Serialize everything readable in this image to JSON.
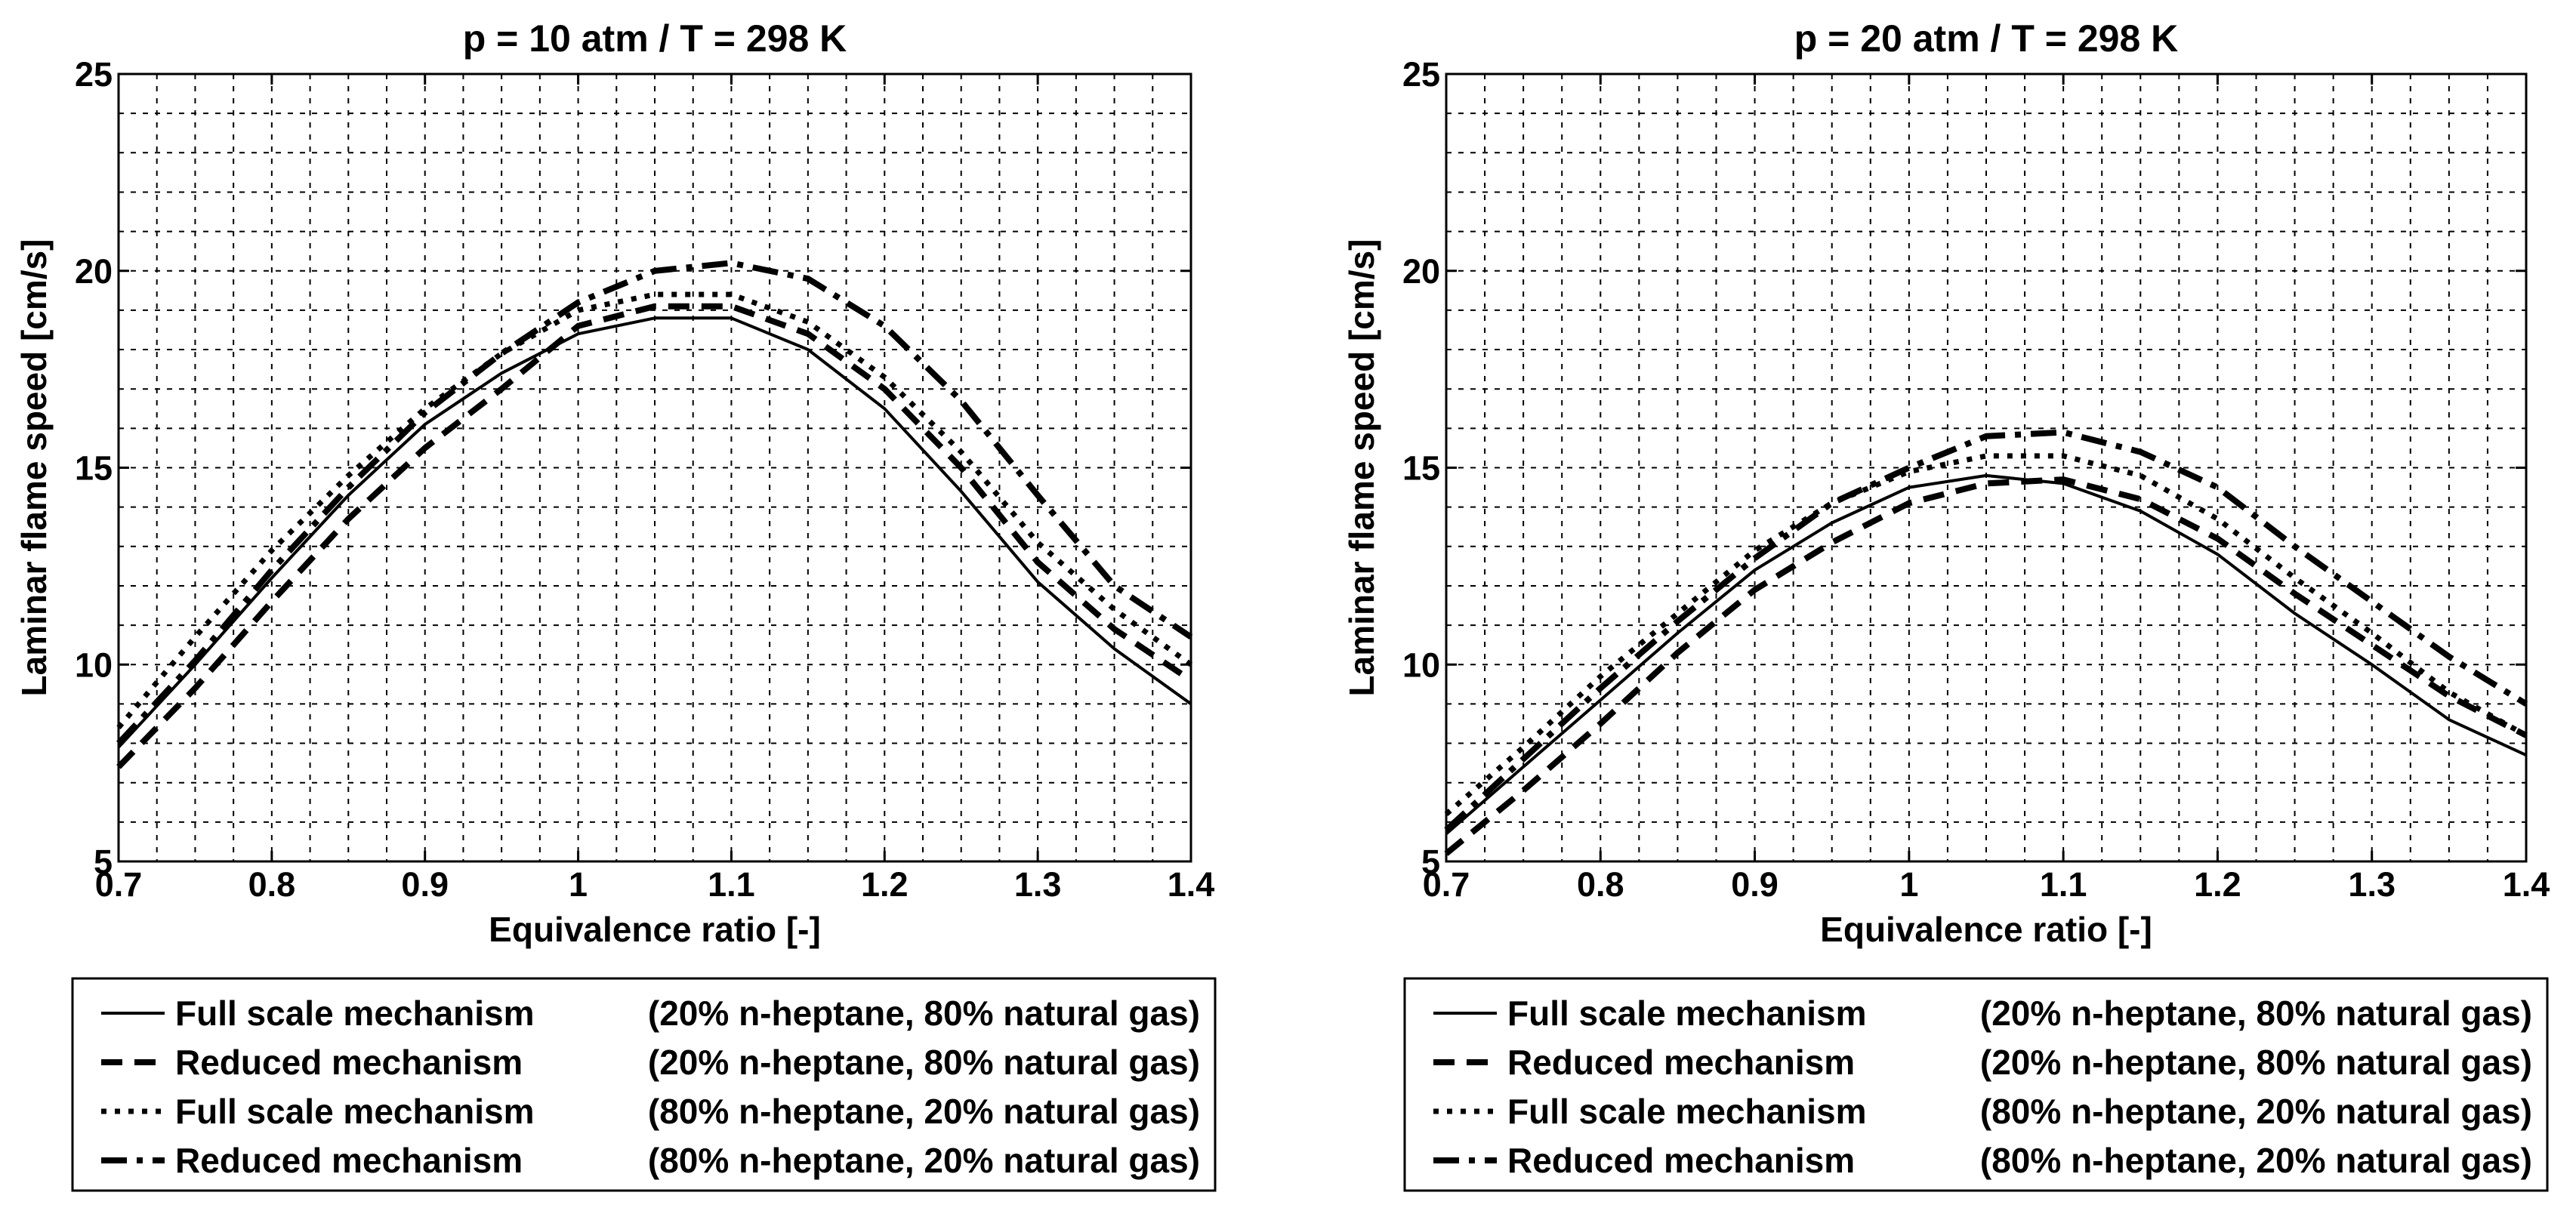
{
  "colors": {
    "line": "#000000",
    "grid": "#000000",
    "background": "#ffffff"
  },
  "chart_data": [
    {
      "type": "line",
      "title": "p = 10 atm / T = 298 K",
      "xlabel": "Equivalence ratio [-]",
      "ylabel": "Laminar flame speed [cm/s]",
      "xlim": [
        0.7,
        1.4
      ],
      "ylim": [
        5,
        25
      ],
      "xticks": [
        0.7,
        0.8,
        0.9,
        1,
        1.1,
        1.2,
        1.3,
        1.4
      ],
      "xtick_labels": [
        "0.7",
        "0.8",
        "0.9",
        "1",
        "1.1",
        "1.2",
        "1.3",
        "1.4"
      ],
      "yticks": [
        5,
        10,
        15,
        20,
        25
      ],
      "ytick_labels": [
        "5",
        "10",
        "15",
        "20",
        "25"
      ],
      "grid": true,
      "x": [
        0.7,
        0.75,
        0.8,
        0.85,
        0.9,
        0.95,
        1.0,
        1.05,
        1.1,
        1.15,
        1.2,
        1.25,
        1.3,
        1.35,
        1.4
      ],
      "series": [
        {
          "name": "Full scale mechanism",
          "composition": "(20% n-heptane, 80% natural gas)",
          "style": "solid",
          "values": [
            7.9,
            10.0,
            12.2,
            14.3,
            16.1,
            17.4,
            18.4,
            18.8,
            18.8,
            18.0,
            16.5,
            14.4,
            12.1,
            10.4,
            9.0
          ]
        },
        {
          "name": "Reduced mechanism",
          "composition": "(20% n-heptane, 80% natural gas)",
          "style": "dashed",
          "values": [
            7.4,
            9.4,
            11.6,
            13.7,
            15.5,
            17.0,
            18.6,
            19.1,
            19.1,
            18.4,
            17.0,
            15.0,
            12.6,
            10.9,
            9.6
          ]
        },
        {
          "name": "Full scale mechanism",
          "composition": "(80% n-heptane, 20% natural gas)",
          "style": "dotted",
          "values": [
            8.4,
            10.7,
            12.9,
            14.8,
            16.5,
            17.9,
            19.0,
            19.4,
            19.4,
            18.7,
            17.3,
            15.4,
            13.1,
            11.4,
            10.0
          ]
        },
        {
          "name": "Reduced mechanism",
          "composition": "(80% n-heptane, 20% natural gas)",
          "style": "dashdot",
          "values": [
            8.0,
            10.1,
            12.4,
            14.5,
            16.4,
            17.9,
            19.2,
            20.0,
            20.2,
            19.8,
            18.6,
            16.7,
            14.3,
            12.0,
            10.7
          ]
        }
      ],
      "legend": [
        {
          "label": "Full scale mechanism",
          "composition": "(20% n-heptane, 80% natural gas)",
          "style": "solid"
        },
        {
          "label": "Reduced mechanism",
          "composition": "(20% n-heptane, 80% natural gas)",
          "style": "dashed"
        },
        {
          "label": "Full scale mechanism",
          "composition": "(80% n-heptane, 20% natural gas)",
          "style": "dotted"
        },
        {
          "label": "Reduced mechanism",
          "composition": "(80% n-heptane, 20% natural gas)",
          "style": "dashdot"
        }
      ],
      "legend_position": "below"
    },
    {
      "type": "line",
      "title": "p = 20 atm / T = 298 K",
      "xlabel": "Equivalence ratio [-]",
      "ylabel": "Laminar flame speed [cm/s]",
      "xlim": [
        0.7,
        1.4
      ],
      "ylim": [
        5,
        25
      ],
      "xticks": [
        0.7,
        0.8,
        0.9,
        1,
        1.1,
        1.2,
        1.3,
        1.4
      ],
      "xtick_labels": [
        "0.7",
        "0.8",
        "0.9",
        "1",
        "1.1",
        "1.2",
        "1.3",
        "1.4"
      ],
      "yticks": [
        5,
        10,
        15,
        20,
        25
      ],
      "ytick_labels": [
        "5",
        "10",
        "15",
        "20",
        "25"
      ],
      "grid": true,
      "x": [
        0.7,
        0.75,
        0.8,
        0.85,
        0.9,
        0.95,
        1.0,
        1.05,
        1.1,
        1.15,
        1.2,
        1.25,
        1.3,
        1.35,
        1.4
      ],
      "series": [
        {
          "name": "Full scale mechanism",
          "composition": "(20% n-heptane, 80% natural gas)",
          "style": "solid",
          "values": [
            5.7,
            7.4,
            9.1,
            10.8,
            12.4,
            13.6,
            14.5,
            14.8,
            14.6,
            13.9,
            12.8,
            11.3,
            10.0,
            8.6,
            7.7
          ]
        },
        {
          "name": "Reduced mechanism",
          "composition": "(20% n-heptane, 80% natural gas)",
          "style": "dashed",
          "values": [
            5.2,
            6.8,
            8.5,
            10.3,
            11.9,
            13.1,
            14.1,
            14.6,
            14.7,
            14.2,
            13.2,
            11.8,
            10.5,
            9.2,
            8.2
          ]
        },
        {
          "name": "Full scale mechanism",
          "composition": "(80% n-heptane, 20% natural gas)",
          "style": "dotted",
          "values": [
            6.2,
            7.9,
            9.7,
            11.3,
            12.9,
            14.1,
            14.9,
            15.3,
            15.3,
            14.8,
            13.7,
            12.2,
            10.8,
            9.3,
            8.2
          ]
        },
        {
          "name": "Reduced mechanism",
          "composition": "(80% n-heptane, 20% natural gas)",
          "style": "dashdot",
          "values": [
            5.8,
            7.6,
            9.4,
            11.1,
            12.7,
            14.1,
            15.0,
            15.8,
            15.9,
            15.4,
            14.5,
            13.0,
            11.6,
            10.2,
            9.0
          ]
        }
      ],
      "legend": [
        {
          "label": "Full scale mechanism",
          "composition": "(20% n-heptane, 80% natural gas)",
          "style": "solid"
        },
        {
          "label": "Reduced mechanism",
          "composition": "(20% n-heptane, 80% natural gas)",
          "style": "dashed"
        },
        {
          "label": "Full scale mechanism",
          "composition": "(80% n-heptane, 20% natural gas)",
          "style": "dotted"
        },
        {
          "label": "Reduced mechanism",
          "composition": "(80% n-heptane, 20% natural gas)",
          "style": "dashdot"
        }
      ],
      "legend_position": "below"
    }
  ]
}
